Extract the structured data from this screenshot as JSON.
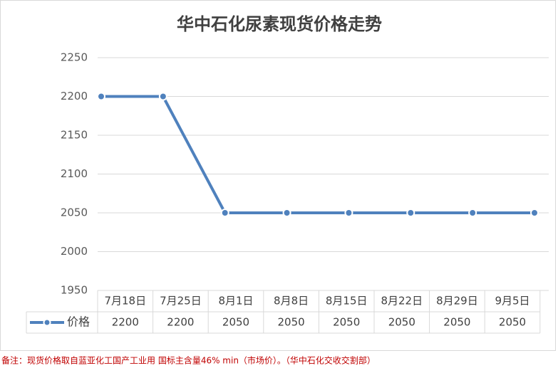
{
  "chart_data": {
    "type": "line",
    "title": "华中石化尿素现货价格走势",
    "categories": [
      "7月18日",
      "7月25日",
      "8月1日",
      "8月8日",
      "8月15日",
      "8月22日",
      "8月29日",
      "9月5日"
    ],
    "series": [
      {
        "name": "价格",
        "color": "#4f81bd",
        "values": [
          2200,
          2200,
          2050,
          2050,
          2050,
          2050,
          2050,
          2050
        ]
      }
    ],
    "ylim": [
      1950,
      2250
    ],
    "yticks": [
      1950,
      2000,
      2050,
      2100,
      2150,
      2200,
      2250
    ],
    "grid": true,
    "note": "备注：现货价格取自蓝亚化工国产工业用 国标主含量46% min（市场价）。（华中石化交收交割部）"
  }
}
